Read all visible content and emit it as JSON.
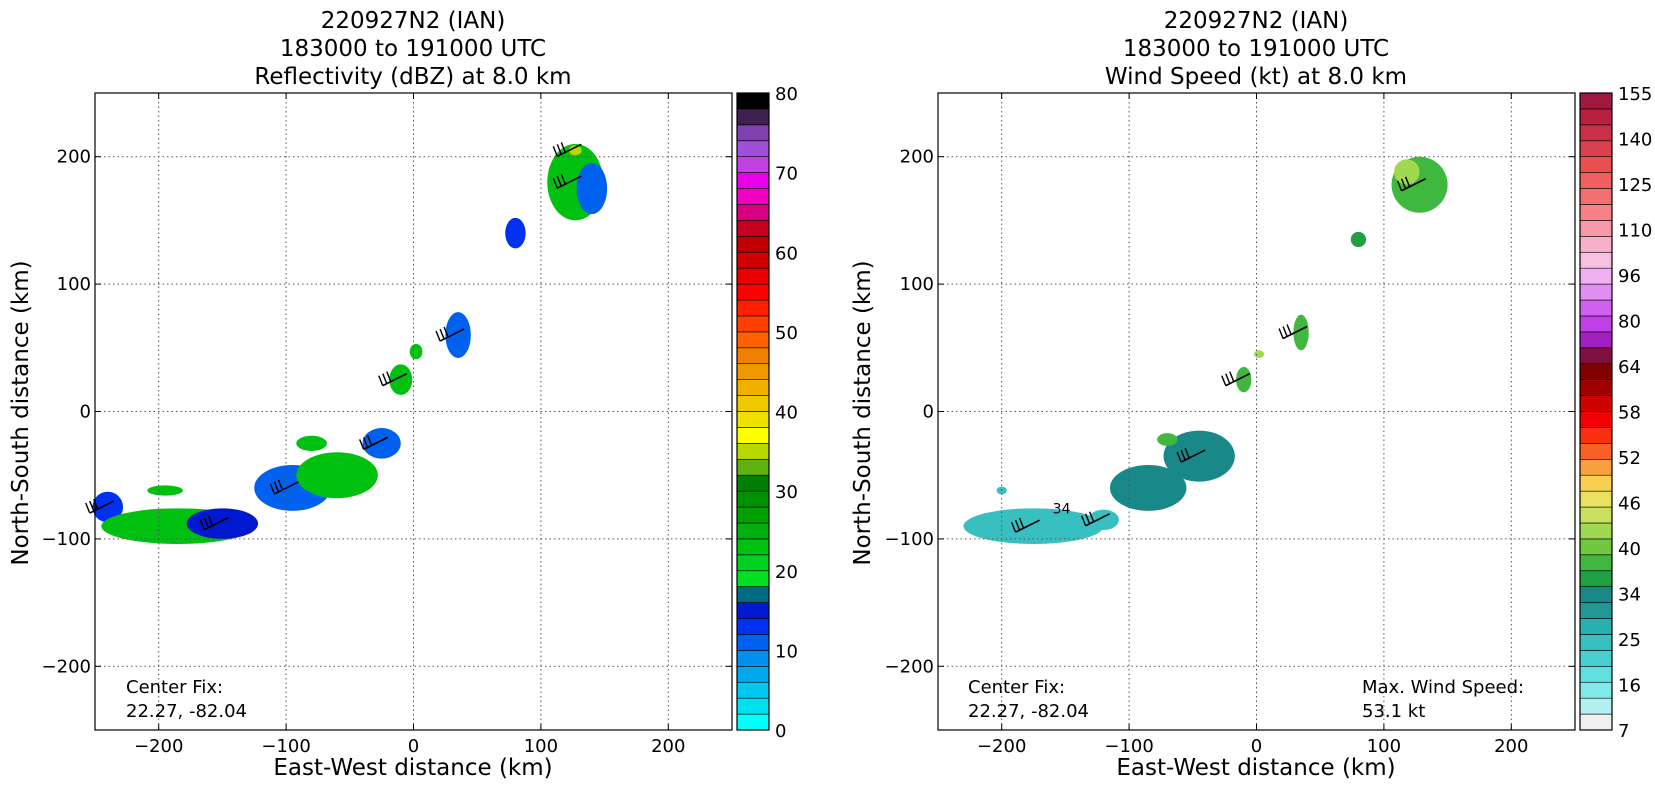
{
  "chart_data": [
    {
      "type": "heatmap",
      "title_lines": [
        "220927N2 (IAN)",
        "183000 to 191000 UTC",
        "Reflectivity (dBZ) at 8.0 km"
      ],
      "xlabel": "East-West distance (km)",
      "ylabel": "North-South distance (km)",
      "xlim": [
        -250,
        250
      ],
      "ylim": [
        -250,
        250
      ],
      "xticks": [
        -200,
        -100,
        0,
        100,
        200
      ],
      "yticks": [
        -200,
        -100,
        0,
        100,
        200
      ],
      "grid": true,
      "annotations": [
        {
          "lines": [
            "Center Fix:",
            "22.27, -82.04"
          ],
          "placement": "bottom-left"
        }
      ],
      "colorbar": {
        "ticks": [
          0,
          10,
          20,
          30,
          40,
          50,
          60,
          70,
          80
        ],
        "colors": [
          "#00ffff",
          "#00e0f0",
          "#00c8f0",
          "#00a8f0",
          "#0090f0",
          "#0060f0",
          "#0030f0",
          "#0018d0",
          "#006a80",
          "#00e020",
          "#00d020",
          "#00c010",
          "#00b010",
          "#00a000",
          "#009000",
          "#008000",
          "#60b010",
          "#b8d800",
          "#ffff00",
          "#f0e000",
          "#f0c800",
          "#f0b000",
          "#f09800",
          "#f08000",
          "#ff6000",
          "#ff4000",
          "#ff2000",
          "#ff0000",
          "#e80000",
          "#d00000",
          "#c00000",
          "#c80020",
          "#d80080",
          "#f000c0",
          "#e800e8",
          "#c040e0",
          "#a050d8",
          "#8040b0",
          "#402050",
          "#000000"
        ]
      },
      "echoes": [
        {
          "x": -240,
          "y": -75,
          "rx": 12,
          "ry": 12,
          "value": 12
        },
        {
          "x": -185,
          "y": -90,
          "rx": 60,
          "ry": 14,
          "value": 22
        },
        {
          "x": -150,
          "y": -88,
          "rx": 28,
          "ry": 12,
          "value": 14
        },
        {
          "x": -195,
          "y": -62,
          "rx": 14,
          "ry": 4,
          "value": 22
        },
        {
          "x": -95,
          "y": -60,
          "rx": 30,
          "ry": 18,
          "value": 10
        },
        {
          "x": -60,
          "y": -50,
          "rx": 32,
          "ry": 18,
          "value": 22
        },
        {
          "x": -25,
          "y": -25,
          "rx": 15,
          "ry": 12,
          "value": 10
        },
        {
          "x": -80,
          "y": -25,
          "rx": 12,
          "ry": 6,
          "value": 22
        },
        {
          "x": -10,
          "y": 25,
          "rx": 9,
          "ry": 12,
          "value": 22
        },
        {
          "x": 2,
          "y": 47,
          "rx": 5,
          "ry": 6,
          "value": 22
        },
        {
          "x": 35,
          "y": 60,
          "rx": 10,
          "ry": 18,
          "value": 10
        },
        {
          "x": 80,
          "y": 140,
          "rx": 8,
          "ry": 12,
          "value": 12
        },
        {
          "x": 127,
          "y": 180,
          "rx": 22,
          "ry": 30,
          "value": 22
        },
        {
          "x": 140,
          "y": 175,
          "rx": 12,
          "ry": 20,
          "value": 10
        },
        {
          "x": 127,
          "y": 205,
          "rx": 5,
          "ry": 4,
          "value": 34
        }
      ]
    },
    {
      "type": "heatmap",
      "title_lines": [
        "220927N2 (IAN)",
        "183000 to 191000 UTC",
        "Wind Speed (kt) at 8.0 km"
      ],
      "xlabel": "East-West distance (km)",
      "ylabel": "North-South distance (km)",
      "xlim": [
        -250,
        250
      ],
      "ylim": [
        -250,
        250
      ],
      "xticks": [
        -200,
        -100,
        0,
        100,
        200
      ],
      "yticks": [
        -200,
        -100,
        0,
        100,
        200
      ],
      "grid": true,
      "annotations": [
        {
          "lines": [
            "Center Fix:",
            "22.27, -82.04"
          ],
          "placement": "bottom-left"
        },
        {
          "lines": [
            "Max. Wind Speed:",
            "53.1 kt"
          ],
          "placement": "bottom-right"
        }
      ],
      "colorbar": {
        "ticks": [
          7,
          16,
          25,
          34,
          40,
          46,
          52,
          58,
          64,
          80,
          96,
          110,
          125,
          140,
          155
        ],
        "colors": [
          "#f0f0f0",
          "#b0f0f0",
          "#80eaea",
          "#60e0e0",
          "#48d0d0",
          "#38c0c0",
          "#28b0b0",
          "#209898",
          "#188888",
          "#20a040",
          "#40b840",
          "#70c840",
          "#a0d850",
          "#c8e060",
          "#e8e060",
          "#f8d050",
          "#f8a040",
          "#f86028",
          "#f83010",
          "#f00000",
          "#d00000",
          "#a00000",
          "#800000",
          "#801040",
          "#a020c0",
          "#c040e8",
          "#d060f0",
          "#e090f0",
          "#f0b0f0",
          "#f8c0e0",
          "#f8b0c8",
          "#f898a8",
          "#f88088",
          "#f07070",
          "#f06060",
          "#e85050",
          "#d84050",
          "#c83048",
          "#b82040",
          "#a01840"
        ]
      },
      "echoes": [
        {
          "x": -175,
          "y": -90,
          "rx": 55,
          "ry": 14,
          "value": 28
        },
        {
          "x": -200,
          "y": -62,
          "rx": 4,
          "ry": 3,
          "value": 28
        },
        {
          "x": -120,
          "y": -85,
          "rx": 12,
          "ry": 8,
          "value": 28
        },
        {
          "x": -85,
          "y": -60,
          "rx": 30,
          "ry": 18,
          "value": 37
        },
        {
          "x": -45,
          "y": -35,
          "rx": 28,
          "ry": 20,
          "value": 40
        },
        {
          "x": -70,
          "y": -22,
          "rx": 8,
          "ry": 5,
          "value": 46
        },
        {
          "x": -10,
          "y": 25,
          "rx": 6,
          "ry": 10,
          "value": 46
        },
        {
          "x": 2,
          "y": 45,
          "rx": 4,
          "ry": 3,
          "value": 52
        },
        {
          "x": 35,
          "y": 62,
          "rx": 6,
          "ry": 14,
          "value": 44
        },
        {
          "x": 80,
          "y": 135,
          "rx": 6,
          "ry": 6,
          "value": 42
        },
        {
          "x": 128,
          "y": 178,
          "rx": 22,
          "ry": 22,
          "value": 46
        },
        {
          "x": 118,
          "y": 188,
          "rx": 10,
          "ry": 10,
          "value": 52
        }
      ],
      "note_label": {
        "text": "34",
        "x": -160,
        "y": -80
      }
    }
  ]
}
